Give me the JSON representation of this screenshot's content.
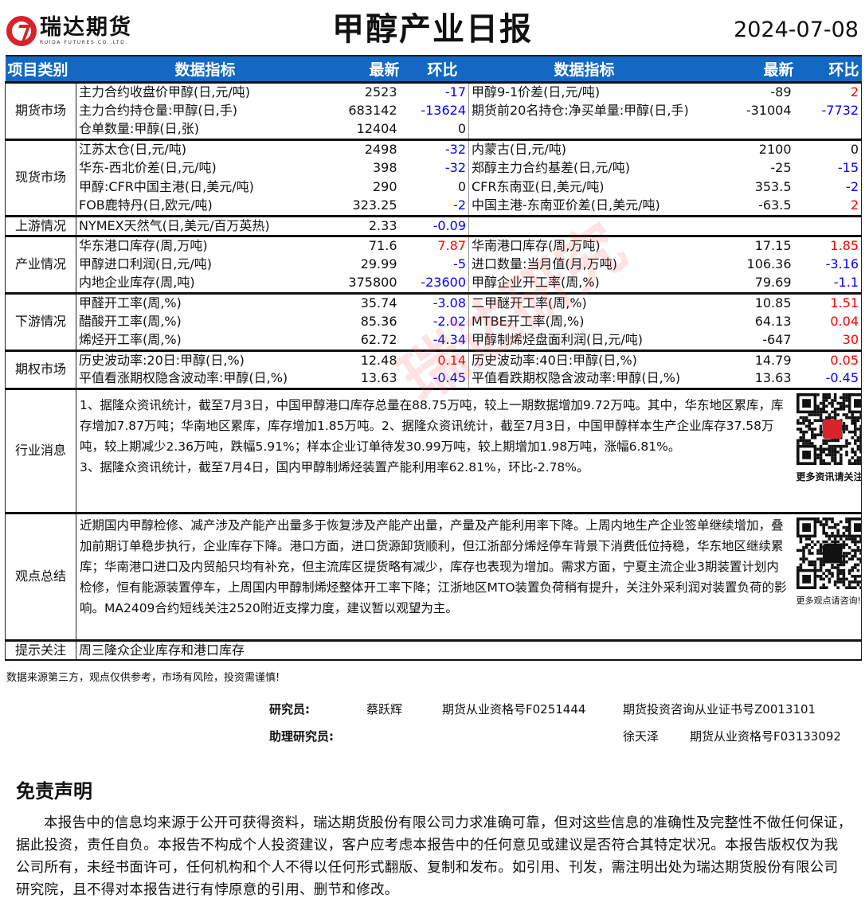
{
  "header": {
    "logo_cn": "瑞达期货",
    "logo_en": "RUIDA FUTURES CO.,LTD.",
    "title": "甲醇产业日报",
    "date": "2024-07-08"
  },
  "table": {
    "columns": [
      "项目类别",
      "数据指标",
      "最新",
      "环比",
      "数据指标",
      "最新",
      "环比"
    ],
    "sections": [
      {
        "category": "期货市场",
        "rows": [
          [
            [
              "主力合约收盘价甲醇(日,元/吨)",
              "2523",
              "-17"
            ],
            [
              "甲醇9-1价差(日,元/吨)",
              "-89",
              "2"
            ]
          ],
          [
            [
              "主力合约持仓量:甲醇(日,手)",
              "683142",
              "-13624"
            ],
            [
              "期货前20名持仓:净买单量:甲醇(日,手)",
              "-31004",
              "-7732"
            ]
          ],
          [
            [
              "仓单数量:甲醇(日,张)",
              "12404",
              "0"
            ],
            null
          ]
        ]
      },
      {
        "category": "现货市场",
        "rows": [
          [
            [
              "江苏太仓(日,元/吨)",
              "2498",
              "-32"
            ],
            [
              "内蒙古(日,元/吨)",
              "2100",
              "0"
            ]
          ],
          [
            [
              "华东-西北价差(日,元/吨)",
              "398",
              "-32"
            ],
            [
              "郑醇主力合约基差(日,元/吨)",
              "-25",
              "-15"
            ]
          ],
          [
            [
              "甲醇:CFR中国主港(日,美元/吨)",
              "290",
              "0"
            ],
            [
              "CFR东南亚(日,美元/吨)",
              "353.5",
              "-2"
            ]
          ],
          [
            [
              "FOB鹿特丹(日,欧元/吨)",
              "323.25",
              "-2"
            ],
            [
              "中国主港-东南亚价差(日,美元/吨)",
              "-63.5",
              "2"
            ]
          ]
        ]
      },
      {
        "category": "上游情况",
        "rows": [
          [
            [
              "NYMEX天然气(日,美元/百万英热)",
              "2.33",
              "-0.09"
            ],
            null
          ]
        ]
      },
      {
        "category": "产业情况",
        "rows": [
          [
            [
              "华东港口库存(周,万吨)",
              "71.6",
              "7.87"
            ],
            [
              "华南港口库存(周,万吨)",
              "17.15",
              "1.85"
            ]
          ],
          [
            [
              "甲醇进口利润(日,元/吨)",
              "29.99",
              "-5"
            ],
            [
              "进口数量:当月值(月,万吨)",
              "106.36",
              "-3.16"
            ]
          ],
          [
            [
              "内地企业库存(周,吨)",
              "375800",
              "-23600"
            ],
            [
              "甲醇企业开工率(周,%)",
              "79.69",
              "-1.1"
            ]
          ]
        ]
      },
      {
        "category": "下游情况",
        "rows": [
          [
            [
              "甲醛开工率(周,%)",
              "35.74",
              "-3.08"
            ],
            [
              "二甲醚开工率(周,%)",
              "10.85",
              "1.51"
            ]
          ],
          [
            [
              "醋酸开工率(周,%)",
              "85.36",
              "-2.02"
            ],
            [
              "MTBE开工率(周,%)",
              "64.13",
              "0.04"
            ]
          ],
          [
            [
              "烯烃开工率(周,%)",
              "62.72",
              "-4.34"
            ],
            [
              "甲醇制烯烃盘面利润(日,元/吨)",
              "-647",
              "30"
            ]
          ]
        ]
      },
      {
        "category": "期权市场",
        "rows": [
          [
            [
              "历史波动率:20日:甲醇(日,%)",
              "12.48",
              "0.14"
            ],
            [
              "历史波动率:40日:甲醇(日,%)",
              "14.79",
              "0.05"
            ]
          ],
          [
            [
              "平值看涨期权隐含波动率:甲醇(日,%)",
              "13.63",
              "-0.45"
            ],
            [
              "平值看跌期权隐含波动率:甲醇(日,%)",
              "13.63",
              "-0.45"
            ]
          ]
        ]
      }
    ],
    "news": {
      "category": "行业消息",
      "lines": [
        "1、据隆众资讯统计，截至7月3日，中国甲醇港口库存总量在88.75万吨，较上一期数据增加9.72万吨。其中，华东地区累库，库存增加7.87万吨；华南地区累库，库存增加1.85万吨。2、据隆众资讯统计，截至7月3日，中国甲醇样本生产企业库存37.58万吨，较上期减少2.36万吨，跌幅5.91%；样本企业订单待发30.99万吨，较上期增加1.98万吨，涨幅6.81%。",
        "3、据隆众资讯统计，截至7月4日，国内甲醇制烯烃装置产能利用率62.81%，环比-2.78%。"
      ],
      "qr_caption": "更多资讯请关注!"
    },
    "view": {
      "category": "观点总结",
      "text": "近期国内甲醇检修、减产涉及产能产出量多于恢复涉及产能产出量，产量及产能利用率下降。上周内地生产企业签单继续增加，叠加前期订单稳步执行，企业库存下降。港口方面，进口货源卸货顺利，但江浙部分烯烃停车背景下消费低位持稳，华东地区继续累库；华南港口进口及内贸船只均有补充，但主流库区提货略有减少，库存也表现为增加。需求方面，宁夏主流企业3期装置计划内检修，恒有能源装置停车，上周国内甲醇制烯烃整体开工率下降；江浙地区MTO装置负荷稍有提升，关注外采利润对装置负荷的影响。MA2409合约短线关注2520附近支撑力度，建议暂以观望为主。",
      "qr_caption": "更多观点请咨询!"
    },
    "hint": {
      "category": "提示关注",
      "text": "周三隆众企业库存和港口库存"
    },
    "colors": {
      "header_bg": "#1268c2",
      "up": "#ff0000",
      "down": "#0000ff"
    }
  },
  "footer": {
    "note": "数据来源第三方，观点仅供参考，市场有风险，投资需谨慎!",
    "researcher_label": "研究员:",
    "researcher_name": "蔡跃辉",
    "researcher_cert1": "期货从业资格号F0251444",
    "researcher_cert2": "期货投资咨询从业证书号Z0013101",
    "assistant_label": "助理研究员:",
    "assistant_name": "徐天泽",
    "assistant_cert": "期货从业资格号F03133092"
  },
  "disclaimer": {
    "title": "免责声明",
    "text": "本报告中的信息均来源于公开可获得资料，瑞达期货股份有限公司力求准确可靠，但对这些信息的准确性及完整性不做任何保证，据此投资，责任自负。本报告不构成个人投资建议，客户应考虑本报告中的任何意见或建议是否符合其特定状况。本报告版权仅为我公司所有，未经书面许可，任何机构和个人不得以任何形式翻版、复制和发布。如引用、刊发，需注明出处为瑞达期货股份有限公司研究院，且不得对本报告进行有悖原意的引用、删节和修改。"
  },
  "watermark": "瑞达研究"
}
